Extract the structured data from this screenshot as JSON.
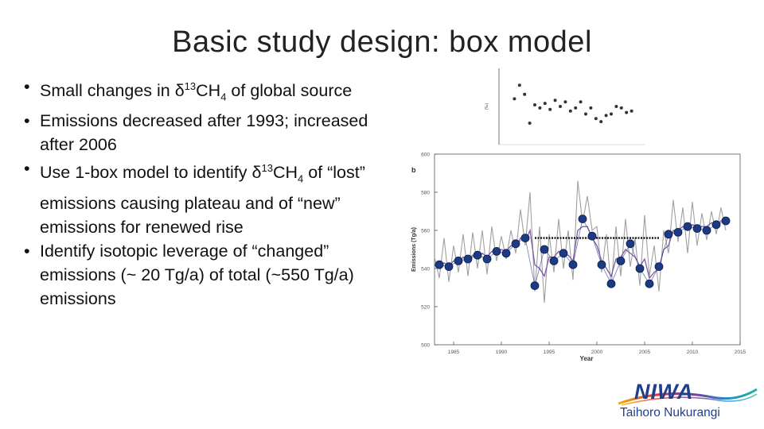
{
  "slide": {
    "title": "Basic study design: box model",
    "bullets": [
      {
        "pre": "Small changes in δ",
        "sup": "13",
        "mid": "CH",
        "sub": "4",
        "post": " of global source"
      },
      {
        "pre": "Emissions decreased after 1993; increased after 2006",
        "sup": "",
        "mid": "",
        "sub": "",
        "post": ""
      },
      {
        "pre": "Use 1-box model to identify δ",
        "sup": "13",
        "mid": "CH",
        "sub": "4",
        "post": " of “lost” emissions causing plateau and of “new” emissions for renewed rise"
      },
      {
        "pre": "Identify isotopic leverage of “changed” emissions (~ 20 Tg/a) of total (~550 Tg/a) emissions",
        "sup": "",
        "mid": "",
        "sub": "",
        "post": ""
      }
    ]
  },
  "logo": {
    "wordmark": "NIWA",
    "tagline": "Taihoro Nukurangi"
  },
  "chart_data": [
    {
      "type": "scatter",
      "panel_label": "",
      "ylabel": "(‰)",
      "x": [
        1985.5,
        1986,
        1986.5,
        1987,
        1987.5,
        1988,
        1988.5,
        1989,
        1989.5,
        1990,
        1990.5,
        1991,
        1991.5,
        1992,
        1992.5,
        1993,
        1993.5,
        1994,
        1994.5,
        1995,
        1995.5,
        1996,
        1996.5,
        1997
      ],
      "y": [
        -47.3,
        -46.4,
        -47.0,
        -48.9,
        -47.7,
        -47.9,
        -47.6,
        -48.0,
        -47.4,
        -47.8,
        -47.5,
        -48.1,
        -47.9,
        -47.5,
        -48.3,
        -47.9,
        -48.6,
        -48.8,
        -48.4,
        -48.3,
        -47.8,
        -47.9,
        -48.2,
        -48.1
      ],
      "ylim": [
        -50,
        -45.5
      ]
    },
    {
      "type": "line",
      "panel_label": "b",
      "xlabel": "Year",
      "ylabel": "Emissions (Tg/a)",
      "xlim": [
        1983,
        2015
      ],
      "ylim": [
        500,
        600
      ],
      "x_ticks": [
        "1985",
        "1990",
        "1995",
        "2000",
        "2005",
        "2010",
        "2015"
      ],
      "y_ticks": [
        "500",
        "520",
        "540",
        "560",
        "580",
        "600"
      ],
      "annual_markers": {
        "x": [
          1983.5,
          1984.5,
          1985.5,
          1986.5,
          1987.5,
          1988.5,
          1989.5,
          1990.5,
          1991.5,
          1992.5,
          1993.5,
          1994.5,
          1995.5,
          1996.5,
          1997.5,
          1998.5,
          1999.5,
          2000.5,
          2001.5,
          2002.5,
          2003.5,
          2004.5,
          2005.5,
          2006.5,
          2007.5,
          2008.5,
          2009.5,
          2010.5,
          2011.5,
          2012.5,
          2013.5
        ],
        "values": [
          542,
          541,
          544,
          545,
          547,
          545,
          549,
          548,
          553,
          556,
          531,
          550,
          544,
          548,
          542,
          566,
          557,
          542,
          532,
          544,
          553,
          540,
          532,
          541,
          558,
          559,
          562,
          561,
          560,
          563,
          565
        ]
      },
      "plateau_segments": [
        {
          "x": [
            1993.5,
            2006.5
          ],
          "value": 556
        }
      ],
      "series": [
        {
          "color": "#a0a0a0",
          "x": [
            1983,
            1983.5,
            1984,
            1984.5,
            1985,
            1985.5,
            1986,
            1986.5,
            1987,
            1987.5,
            1988,
            1988.5,
            1989,
            1989.5,
            1990,
            1990.5,
            1991,
            1991.5,
            1992,
            1992.5,
            1993,
            1993.5,
            1994,
            1994.5,
            1995,
            1995.5,
            1996,
            1996.5,
            1997,
            1997.5,
            1998,
            1998.5,
            1999,
            1999.5,
            2000,
            2000.5,
            2001,
            2001.5,
            2002,
            2002.5,
            2003,
            2003.5,
            2004,
            2004.5,
            2005,
            2005.5,
            2006,
            2006.5,
            2007,
            2007.5,
            2008,
            2008.5,
            2009,
            2009.5,
            2010,
            2010.5,
            2011,
            2011.5,
            2012,
            2012.5,
            2013,
            2013.5
          ],
          "values": [
            546,
            535,
            556,
            533,
            552,
            538,
            558,
            536,
            559,
            540,
            560,
            537,
            562,
            544,
            557,
            545,
            560,
            548,
            571,
            552,
            580,
            528,
            562,
            522,
            558,
            538,
            566,
            540,
            560,
            534,
            586,
            564,
            578,
            560,
            562,
            538,
            558,
            530,
            562,
            536,
            566,
            541,
            556,
            531,
            568,
            536,
            552,
            528,
            560,
            548,
            576,
            554,
            572,
            548,
            575,
            552,
            569,
            555,
            570,
            558,
            572,
            560
          ]
        },
        {
          "color": "#7b5aa6",
          "x": [
            1983,
            1983.5,
            1984,
            1984.5,
            1985,
            1985.5,
            1986,
            1986.5,
            1987,
            1987.5,
            1988,
            1988.5,
            1989,
            1989.5,
            1990,
            1990.5,
            1991,
            1991.5,
            1992,
            1992.5,
            1993,
            1993.5,
            1994,
            1994.5,
            1995,
            1995.5,
            1996,
            1996.5,
            1997,
            1997.5,
            1998,
            1998.5,
            1999,
            1999.5,
            2000,
            2000.5,
            2001,
            2001.5,
            2002,
            2002.5,
            2003,
            2003.5,
            2004,
            2004.5,
            2005,
            2005.5,
            2006,
            2006.5,
            2007,
            2007.5,
            2008,
            2008.5,
            2009,
            2009.5,
            2010,
            2010.5,
            2011,
            2011.5,
            2012,
            2012.5,
            2013,
            2013.5
          ],
          "values": [
            542,
            540,
            543,
            541,
            544,
            543,
            546,
            544,
            547,
            545,
            548,
            546,
            549,
            548,
            550,
            549,
            552,
            551,
            556,
            554,
            560,
            542,
            540,
            536,
            546,
            546,
            549,
            547,
            547,
            544,
            560,
            562,
            562,
            556,
            552,
            544,
            540,
            536,
            545,
            546,
            550,
            548,
            546,
            541,
            545,
            535,
            538,
            540,
            550,
            552,
            560,
            560,
            562,
            560,
            563,
            562,
            562,
            562,
            564,
            563,
            565,
            565
          ]
        }
      ]
    }
  ]
}
